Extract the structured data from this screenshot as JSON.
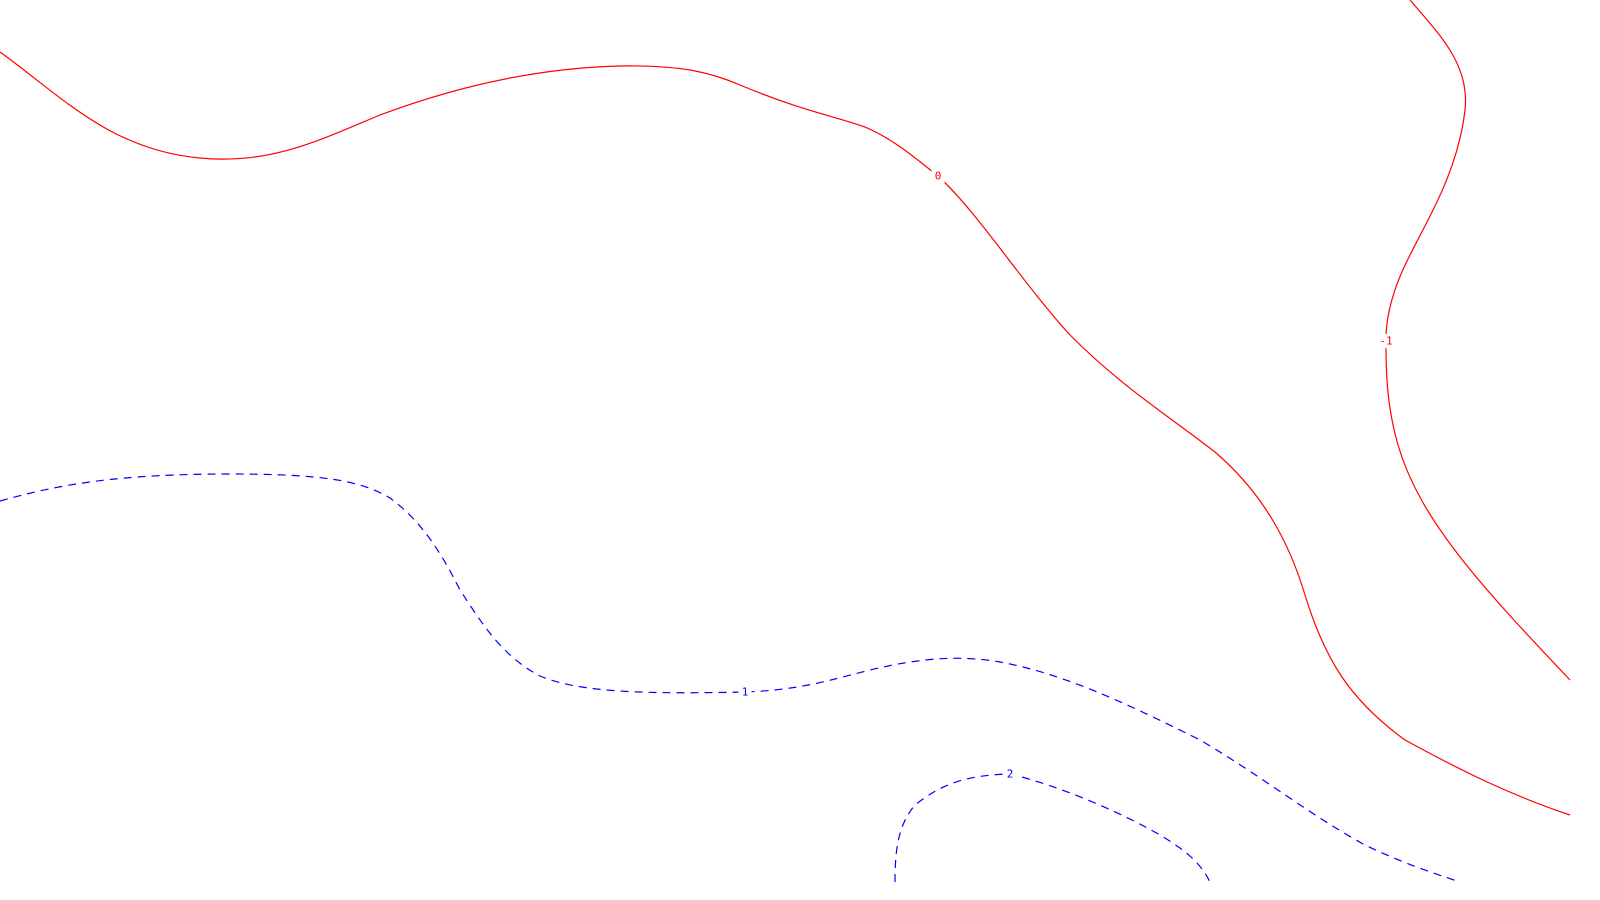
{
  "chart_data": {
    "type": "contour",
    "title": "",
    "xlabel": "",
    "ylabel": "",
    "grid": false,
    "legend": "none",
    "levels": [
      {
        "value": -1,
        "label": "-1",
        "color": "#ff0000",
        "dash": "solid"
      },
      {
        "value": 0,
        "label": "0",
        "color": "#ff0000",
        "dash": "solid"
      },
      {
        "value": 1,
        "label": "1",
        "color": "#0000ff",
        "dash": "dashed"
      },
      {
        "value": 2,
        "label": "2",
        "color": "#0000ff",
        "dash": "dashed"
      }
    ]
  }
}
